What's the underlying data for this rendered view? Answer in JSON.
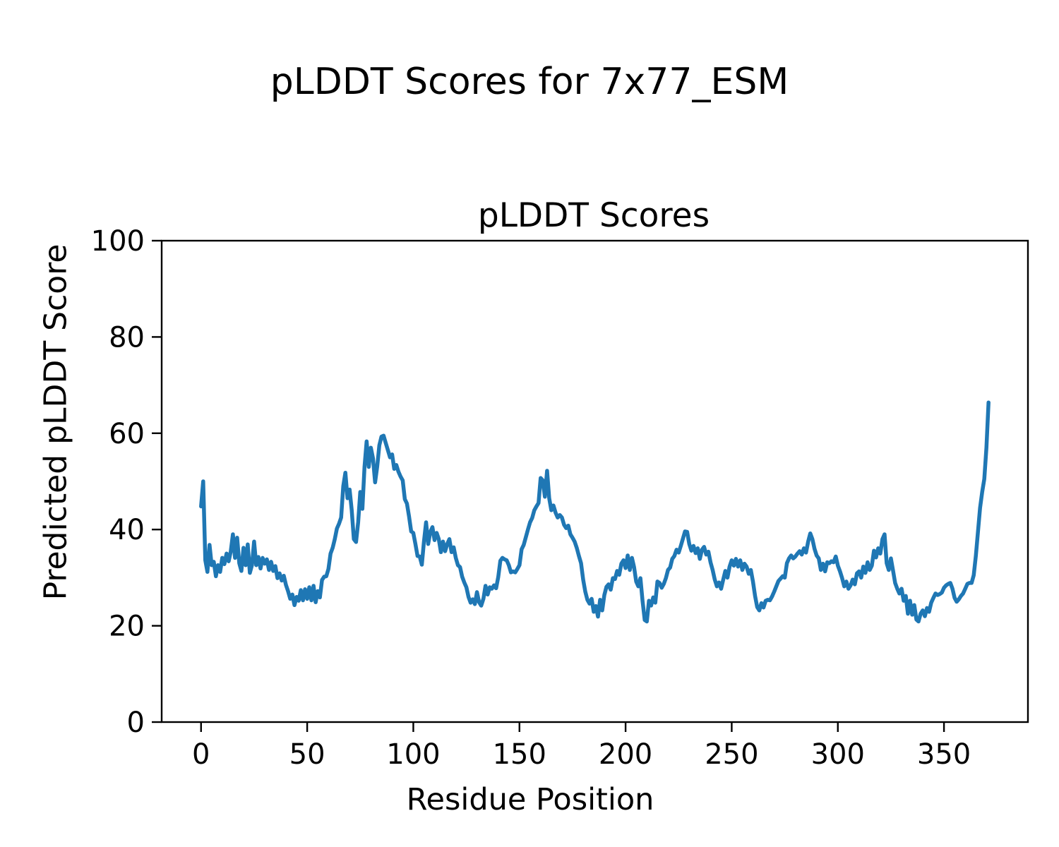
{
  "figure": {
    "suptitle": "pLDDT Scores for 7x77_ESM",
    "axes_title": "pLDDT Scores",
    "xlabel": "Residue Position",
    "ylabel": "Predicted pLDDT Score"
  },
  "chart_data": {
    "type": "line",
    "title": "pLDDT Scores",
    "xlabel": "Residue Position",
    "ylabel": "Predicted pLDDT Score",
    "line_color": "#1f77b4",
    "background_color": "#ffffff",
    "grid": false,
    "legend": "none",
    "xlim": [
      -18.55,
      389.55
    ],
    "ylim": [
      0,
      100
    ],
    "x_ticks": [
      0,
      50,
      100,
      150,
      200,
      250,
      300,
      350
    ],
    "y_ticks": [
      0,
      20,
      40,
      60,
      80,
      100
    ],
    "x_start": 0,
    "x_step": 1,
    "values": [
      44.8,
      50.0,
      33.6,
      31.2,
      36.8,
      32.6,
      33.3,
      30.3,
      32.6,
      31.2,
      34.1,
      32.8,
      35.0,
      33.4,
      35.5,
      39.0,
      34.1,
      38.3,
      33.0,
      31.4,
      36.2,
      32.6,
      36.9,
      31.0,
      32.6,
      37.5,
      32.6,
      34.3,
      31.9,
      34.1,
      32.9,
      33.8,
      31.6,
      33.3,
      31.4,
      32.4,
      29.9,
      30.9,
      29.4,
      30.4,
      28.5,
      27.2,
      25.6,
      26.5,
      24.3,
      26.0,
      25.2,
      27.4,
      25.3,
      27.6,
      25.6,
      28.0,
      25.3,
      28.3,
      24.9,
      27.2,
      25.9,
      29.5,
      30.2,
      30.3,
      31.8,
      35.0,
      36.2,
      38.0,
      40.2,
      41.2,
      42.5,
      49.0,
      51.8,
      46.5,
      48.3,
      44.0,
      38.0,
      37.4,
      41.5,
      47.8,
      44.3,
      53.0,
      58.3,
      53.0,
      57.0,
      54.8,
      49.8,
      53.1,
      57.5,
      59.3,
      59.5,
      58.0,
      56.5,
      55.0,
      55.6,
      52.6,
      53.4,
      52.0,
      51.0,
      50.2,
      46.3,
      45.4,
      42.7,
      39.6,
      39.3,
      37.0,
      34.5,
      34.4,
      32.7,
      37.5,
      41.5,
      37.0,
      39.5,
      40.5,
      37.8,
      39.3,
      38.0,
      35.3,
      37.5,
      35.5,
      37.0,
      38.0,
      35.3,
      36.3,
      34.1,
      32.6,
      32.2,
      30.2,
      29.0,
      28.0,
      26.0,
      24.8,
      25.5,
      24.5,
      27.0,
      24.9,
      24.2,
      25.6,
      28.3,
      26.5,
      28.0,
      27.7,
      28.4,
      27.8,
      30.1,
      33.5,
      34.1,
      33.8,
      33.6,
      32.6,
      31.1,
      31.3,
      31.1,
      31.8,
      32.6,
      35.9,
      36.8,
      38.4,
      40.0,
      41.5,
      42.4,
      44.0,
      44.8,
      45.5,
      50.7,
      50.2,
      46.8,
      52.2,
      46.5,
      44.0,
      45.0,
      43.5,
      42.5,
      43.0,
      42.5,
      41.0,
      40.3,
      40.8,
      39.0,
      38.3,
      37.5,
      36.2,
      34.5,
      33.0,
      29.6,
      27.1,
      25.4,
      24.6,
      25.6,
      22.9,
      24.1,
      21.9,
      25.4,
      23.2,
      26.4,
      28.1,
      28.6,
      27.5,
      29.9,
      29.7,
      31.4,
      30.6,
      32.9,
      33.6,
      32.0,
      34.6,
      31.6,
      34.1,
      32.2,
      29.2,
      28.2,
      29.9,
      25.2,
      21.2,
      20.9,
      25.2,
      24.2,
      25.9,
      24.8,
      29.2,
      28.9,
      27.9,
      28.7,
      29.9,
      31.6,
      32.1,
      33.9,
      34.5,
      35.8,
      35.2,
      36.6,
      38.1,
      39.6,
      39.5,
      37.0,
      35.6,
      36.6,
      35.1,
      36.1,
      33.9,
      35.8,
      36.4,
      34.8,
      35.4,
      33.2,
      31.6,
      29.6,
      28.2,
      29.0,
      27.7,
      29.6,
      31.4,
      30.0,
      32.3,
      33.6,
      32.5,
      33.9,
      32.3,
      33.6,
      31.6,
      32.9,
      32.3,
      30.8,
      31.6,
      29.2,
      26.2,
      23.9,
      23.2,
      24.7,
      23.8,
      25.2,
      25.4,
      25.3,
      26.1,
      27.1,
      28.2,
      29.3,
      29.8,
      30.3,
      30.0,
      33.0,
      34.0,
      34.6,
      34.0,
      34.4,
      35.0,
      35.5,
      34.8,
      36.1,
      35.2,
      37.5,
      39.2,
      38.0,
      36.0,
      34.6,
      34.0,
      31.6,
      32.9,
      31.3,
      33.2,
      33.0,
      33.4,
      33.2,
      34.4,
      32.5,
      31.3,
      29.9,
      28.2,
      29.2,
      27.7,
      28.4,
      29.6,
      28.6,
      30.9,
      31.3,
      30.0,
      32.3,
      31.0,
      33.2,
      31.6,
      32.5,
      35.6,
      34.2,
      36.1,
      35.0,
      38.0,
      39.0,
      33.0,
      31.6,
      34.0,
      31.5,
      28.9,
      27.7,
      26.7,
      27.7,
      25.2,
      26.2,
      22.5,
      25.2,
      22.3,
      24.3,
      21.3,
      20.9,
      22.5,
      23.2,
      22.0,
      23.7,
      22.9,
      24.8,
      25.8,
      26.7,
      26.4,
      26.6,
      26.9,
      27.9,
      28.4,
      28.7,
      28.9,
      27.7,
      25.8,
      25.0,
      25.5,
      26.2,
      26.7,
      27.7,
      28.7,
      28.9,
      28.9,
      30.5,
      34.5,
      39.5,
      44.5,
      47.8,
      50.5,
      57.0,
      66.4
    ]
  }
}
